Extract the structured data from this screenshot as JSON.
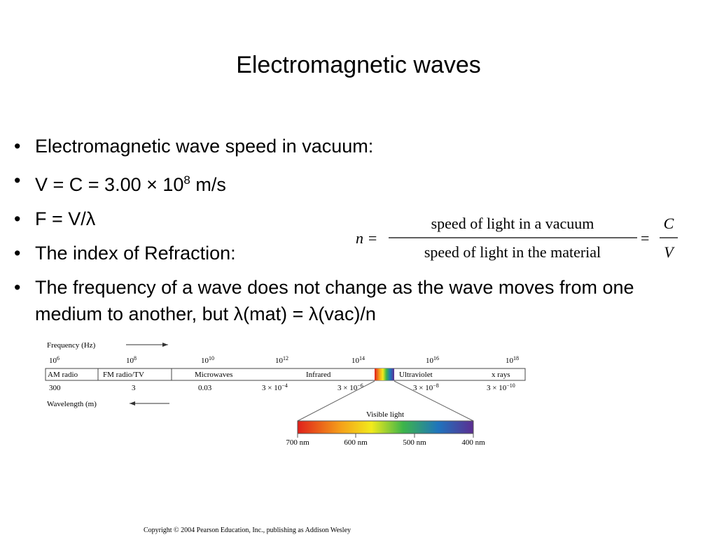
{
  "header": {
    "title": "Electromagnetic waves"
  },
  "bullets": [
    "Electromagnetic wave speed in vacuum:",
    {
      "text": "V = C = 3.00 × 10",
      "sup": "8",
      "tail": " m/s"
    },
    "F = V/λ",
    "The index of Refraction:",
    "The frequency of a wave does not change as the wave moves from one medium to another, but λ(mat) = λ(vac)/n"
  ],
  "formula": {
    "lhs": "n =",
    "numerator": "speed of light in a vacuum",
    "denominator": "speed of light in the material",
    "equals": "=",
    "c": "C",
    "v": "V"
  },
  "spectrum": {
    "frequency_label": "Frequency (Hz)",
    "frequencies": [
      {
        "base": "10",
        "exp": "6"
      },
      {
        "base": "10",
        "exp": "8"
      },
      {
        "base": "10",
        "exp": "10"
      },
      {
        "base": "10",
        "exp": "12"
      },
      {
        "base": "10",
        "exp": "14"
      },
      {
        "base": "10",
        "exp": "16"
      },
      {
        "base": "10",
        "exp": "18"
      }
    ],
    "bands": [
      "AM radio",
      "FM radio/TV",
      "Microwaves",
      "Infrared",
      "Ultraviolet",
      "x rays"
    ],
    "wavelengths": [
      "300",
      "3",
      "0.03",
      {
        "base": "3 × 10",
        "exp": "−4"
      },
      {
        "base": "3 × 10",
        "exp": "−6"
      },
      {
        "base": "3 × 10",
        "exp": "−8"
      },
      {
        "base": "3 × 10",
        "exp": "−10"
      }
    ],
    "wavelength_label": "Wavelength (m)",
    "visible_label": "Visible light",
    "visible_ticks": [
      "700 nm",
      "600 nm",
      "500 nm",
      "400 nm"
    ]
  },
  "footer": {
    "copyright": "Copyright © 2004 Pearson Education, Inc., publishing as Addison Wesley"
  }
}
